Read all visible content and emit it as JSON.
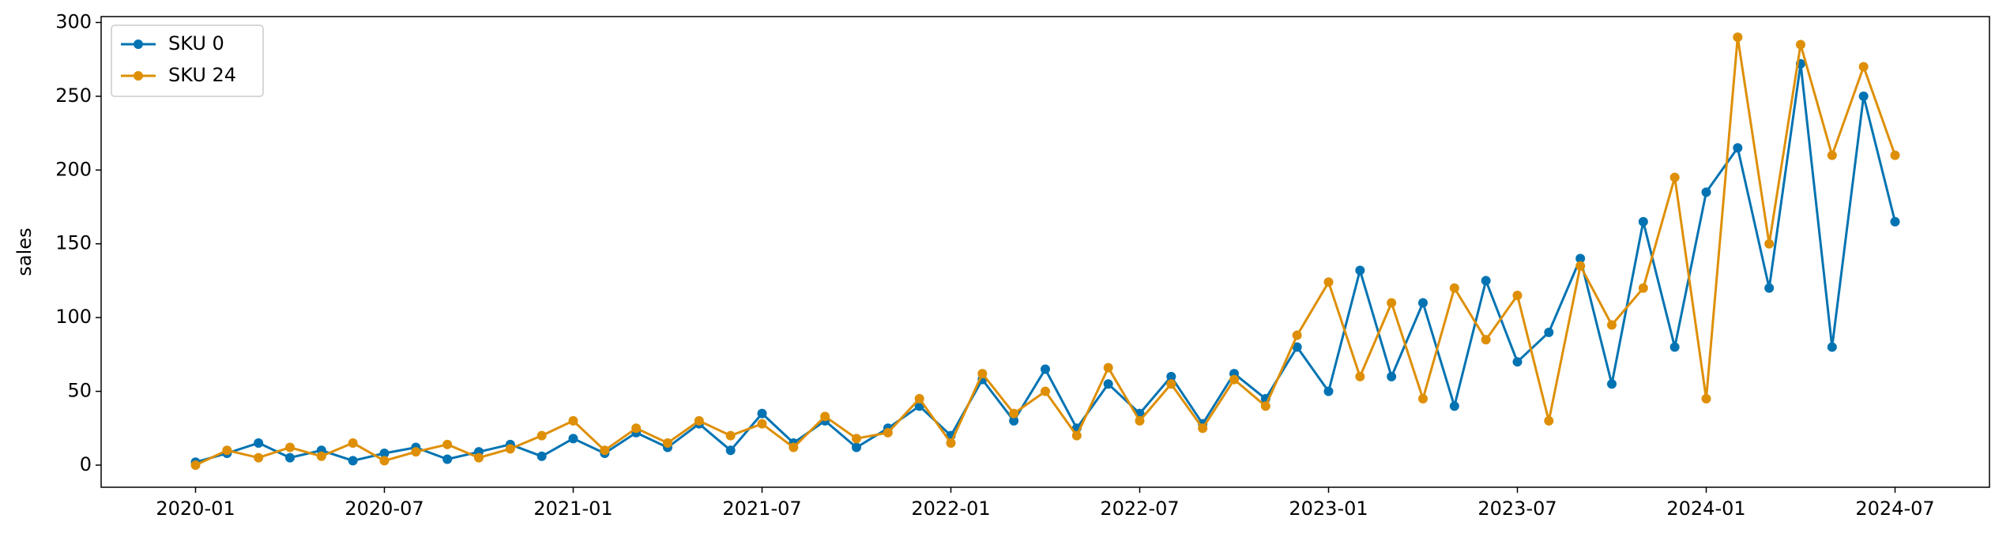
{
  "chart_data": {
    "type": "line",
    "ylabel": "sales",
    "x": [
      "2020-01",
      "2020-02",
      "2020-03",
      "2020-04",
      "2020-05",
      "2020-06",
      "2020-07",
      "2020-08",
      "2020-09",
      "2020-10",
      "2020-11",
      "2020-12",
      "2021-01",
      "2021-02",
      "2021-03",
      "2021-04",
      "2021-05",
      "2021-06",
      "2021-07",
      "2021-08",
      "2021-09",
      "2021-10",
      "2021-11",
      "2021-12",
      "2022-01",
      "2022-02",
      "2022-03",
      "2022-04",
      "2022-05",
      "2022-06",
      "2022-07",
      "2022-08",
      "2022-09",
      "2022-10",
      "2022-11",
      "2022-12",
      "2023-01",
      "2023-02",
      "2023-03",
      "2023-04",
      "2023-05",
      "2023-06",
      "2023-07",
      "2023-08",
      "2023-09",
      "2023-10",
      "2023-11",
      "2023-12",
      "2024-01",
      "2024-02",
      "2024-03",
      "2024-04",
      "2024-05",
      "2024-06",
      "2024-07"
    ],
    "series": [
      {
        "name": "SKU 0",
        "color": "#0173b2",
        "values": [
          2,
          8,
          15,
          5,
          10,
          3,
          8,
          12,
          4,
          9,
          14,
          6,
          18,
          8,
          22,
          12,
          28,
          10,
          35,
          15,
          30,
          12,
          25,
          40,
          20,
          58,
          30,
          65,
          25,
          55,
          35,
          60,
          28,
          62,
          45,
          80,
          50,
          132,
          60,
          110,
          40,
          125,
          70,
          90,
          140,
          55,
          165,
          80,
          185,
          215,
          120,
          272,
          80,
          250,
          165
        ]
      },
      {
        "name": "SKU 24",
        "color": "#de8f05",
        "values": [
          0,
          10,
          5,
          12,
          6,
          15,
          3,
          9,
          14,
          5,
          11,
          20,
          30,
          10,
          25,
          15,
          30,
          20,
          28,
          12,
          33,
          18,
          22,
          45,
          15,
          62,
          35,
          50,
          20,
          66,
          30,
          55,
          25,
          58,
          40,
          88,
          124,
          60,
          110,
          45,
          120,
          85,
          115,
          30,
          135,
          95,
          120,
          195,
          45,
          290,
          150,
          285,
          210,
          270,
          210
        ]
      }
    ],
    "xlim": [
      "2019-10",
      "2024-10"
    ],
    "xticks": [
      "2020-01",
      "2020-07",
      "2021-01",
      "2021-07",
      "2022-01",
      "2022-07",
      "2023-01",
      "2023-07",
      "2024-01",
      "2024-07"
    ],
    "ylim": [
      -15,
      304
    ],
    "yticks": [
      0,
      50,
      100,
      150,
      200,
      250,
      300
    ],
    "legend": "upper left"
  }
}
